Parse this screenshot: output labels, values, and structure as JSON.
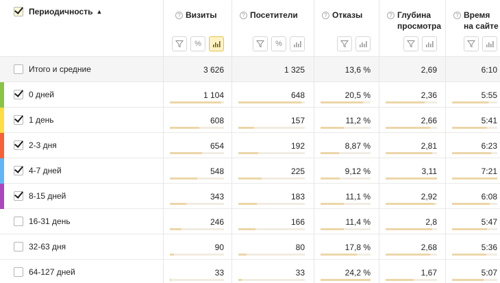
{
  "header": {
    "dimension_label": "Периодичность",
    "sort_indicator": "▲",
    "metrics": [
      {
        "line1": "Визиты",
        "line2": ""
      },
      {
        "line1": "Посетители",
        "line2": ""
      },
      {
        "line1": "Отказы",
        "line2": ""
      },
      {
        "line1": "Глубина",
        "line2": "просмотра"
      },
      {
        "line1": "Время",
        "line2": "на сайте"
      }
    ],
    "help_glyph": "?"
  },
  "totals": {
    "label": "Итого и средние",
    "values": [
      "3 626",
      "1 325",
      "13,6 %",
      "2,69",
      "6:10"
    ]
  },
  "rows": [
    {
      "label": "0 дней",
      "checked": true,
      "color": "#8bc34a",
      "values": [
        "1 104",
        "648",
        "20,5 %",
        "2,36",
        "5:55"
      ],
      "bars": [
        0.95,
        0.95,
        0.85,
        0.76,
        0.8
      ]
    },
    {
      "label": "1 день",
      "checked": true,
      "color": "#ffdd44",
      "values": [
        "608",
        "157",
        "11,2 %",
        "2,66",
        "5:41"
      ],
      "bars": [
        0.55,
        0.24,
        0.46,
        0.86,
        0.77
      ]
    },
    {
      "label": "2-3 дня",
      "checked": true,
      "color": "#f4623a",
      "values": [
        "654",
        "192",
        "8,87 %",
        "2,81",
        "6:23"
      ],
      "bars": [
        0.59,
        0.3,
        0.37,
        0.9,
        0.86
      ]
    },
    {
      "label": "4-7 дней",
      "checked": true,
      "color": "#64b5f6",
      "values": [
        "548",
        "225",
        "9,12 %",
        "3,11",
        "7:21"
      ],
      "bars": [
        0.5,
        0.35,
        0.38,
        1.0,
        1.0
      ]
    },
    {
      "label": "8-15 дней",
      "checked": true,
      "color": "#ab47bc",
      "values": [
        "343",
        "183",
        "11,1 %",
        "2,92",
        "6:08"
      ],
      "bars": [
        0.31,
        0.28,
        0.46,
        0.94,
        0.83
      ]
    },
    {
      "label": "16-31 день",
      "checked": false,
      "color": "",
      "values": [
        "246",
        "166",
        "11,4 %",
        "2,8",
        "5:47"
      ],
      "bars": [
        0.22,
        0.26,
        0.47,
        0.9,
        0.78
      ]
    },
    {
      "label": "32-63 дня",
      "checked": false,
      "color": "",
      "values": [
        "90",
        "80",
        "17,8 %",
        "2,68",
        "5:36"
      ],
      "bars": [
        0.08,
        0.12,
        0.73,
        0.86,
        0.76
      ]
    },
    {
      "label": "64-127 дней",
      "checked": false,
      "color": "",
      "values": [
        "33",
        "33",
        "24,2 %",
        "1,67",
        "5:07"
      ],
      "bars": [
        0.03,
        0.05,
        1.0,
        0.54,
        0.7
      ]
    }
  ],
  "colors": {
    "bar_fill": "#ecd6a8",
    "bar_track": "#f1ece2",
    "active_tool": "#fff3c4"
  },
  "icons": {
    "filter": "funnel-icon",
    "percent": "percent-icon",
    "chart": "bar-chart-icon"
  },
  "percent_glyph": "%"
}
